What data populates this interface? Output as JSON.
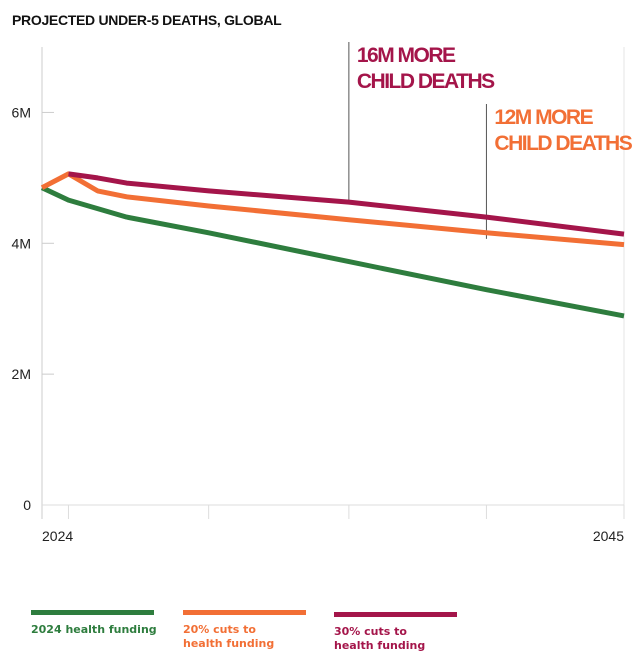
{
  "chart_data": {
    "type": "line",
    "title": "PROJECTED UNDER-5 DEATHS, GLOBAL",
    "xlabel": "",
    "ylabel": "",
    "x_domain": [
      2023,
      2045
    ],
    "ylim": [
      0,
      7000000
    ],
    "y_ticks": [
      {
        "value": 0,
        "label": "0"
      },
      {
        "value": 2000000,
        "label": "2M"
      },
      {
        "value": 4000000,
        "label": "4M"
      },
      {
        "value": 6000000,
        "label": "6M"
      }
    ],
    "x_ticks": [
      {
        "value": 2024,
        "label": "2024"
      },
      {
        "value": 2029.3,
        "label": ""
      },
      {
        "value": 2034.6,
        "label": ""
      },
      {
        "value": 2039.8,
        "label": ""
      },
      {
        "value": 2045,
        "label": "2045"
      }
    ],
    "series": [
      {
        "name": "2024 health funding",
        "color": "#2e7d3e",
        "points": [
          [
            2023,
            4850000
          ],
          [
            2024,
            4660000
          ],
          [
            2026.2,
            4400000
          ],
          [
            2029.3,
            4160000
          ],
          [
            2034.6,
            3720000
          ],
          [
            2039.8,
            3290000
          ],
          [
            2045,
            2890000
          ]
        ]
      },
      {
        "name": "20% cuts to health funding",
        "color": "#f26f35",
        "points": [
          [
            2023,
            4850000
          ],
          [
            2024,
            5060000
          ],
          [
            2025.1,
            4800000
          ],
          [
            2026.2,
            4710000
          ],
          [
            2029.3,
            4570000
          ],
          [
            2034.6,
            4360000
          ],
          [
            2039.8,
            4160000
          ],
          [
            2045,
            3980000
          ]
        ]
      },
      {
        "name": "30% cuts to health funding",
        "color": "#a4154a",
        "points": [
          [
            2024,
            5060000
          ],
          [
            2025.1,
            5000000
          ],
          [
            2026.2,
            4920000
          ],
          [
            2029.3,
            4800000
          ],
          [
            2034.6,
            4630000
          ],
          [
            2039.8,
            4400000
          ],
          [
            2045,
            4140000
          ]
        ]
      }
    ],
    "annotations": [
      {
        "line1": "16M MORE",
        "line2": "CHILD DEATHS",
        "color": "#a4154a",
        "x": 2034.6,
        "series": "30% cuts to health funding"
      },
      {
        "line1": "12M MORE",
        "line2": "CHILD DEATHS",
        "color": "#f26f35",
        "x": 2039.8,
        "series": "20% cuts to health funding"
      }
    ],
    "legend": {
      "placement": "bottom",
      "entries": [
        {
          "label": "2024 health funding",
          "color": "#2e7d3e"
        },
        {
          "label": "20% cuts to\nhealth funding",
          "color": "#f26f35"
        },
        {
          "label": "30% cuts to\nhealth funding",
          "color": "#a4154a"
        }
      ]
    },
    "grid": false
  }
}
